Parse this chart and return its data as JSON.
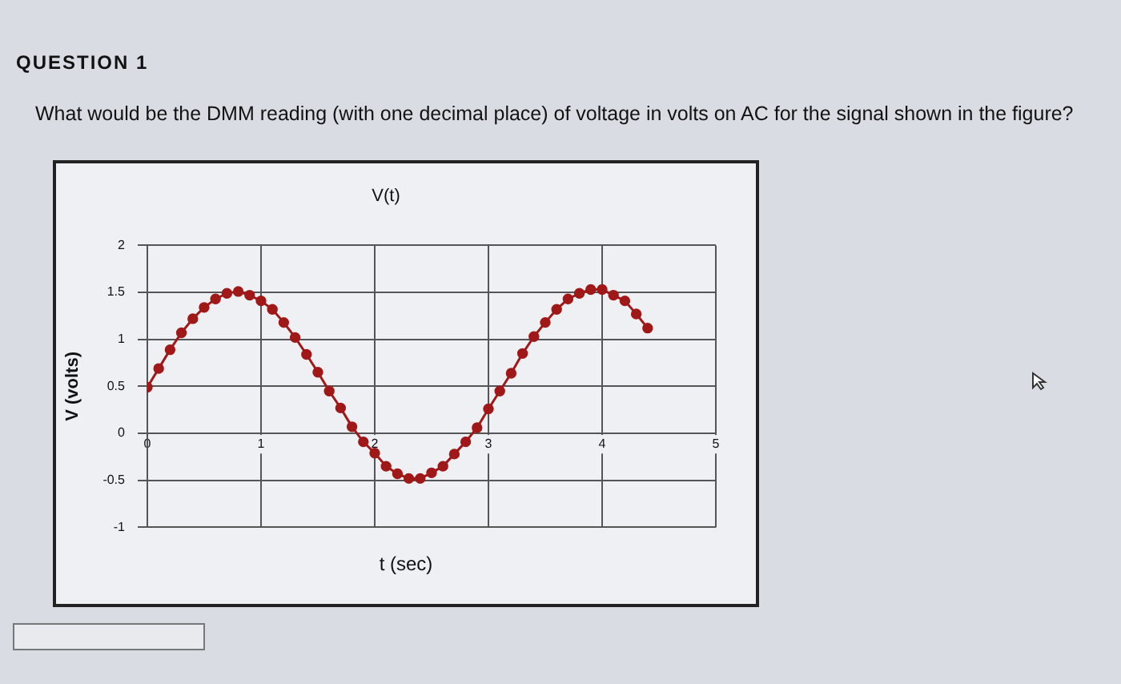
{
  "chart_data": {
    "type": "line",
    "title": "V(t)",
    "xlabel": "t (sec)",
    "ylabel": "V (volts)",
    "annotations": [
      "QUESTION 1",
      "What would be the DMM reading (with one decimal place) of voltage in volts on AC for the signal shown in the figure?"
    ],
    "x": [
      0,
      0.1,
      0.2,
      0.3,
      0.4,
      0.5,
      0.6,
      0.7,
      0.8,
      0.9,
      1,
      1.1,
      1.2,
      1.3,
      1.4,
      1.5,
      1.6,
      1.7,
      1.8,
      1.9,
      2,
      2.1,
      2.2,
      2.3,
      2.4,
      2.5,
      2.6,
      2.7,
      2.8,
      2.9,
      3,
      3.1,
      3.2,
      3.3,
      3.4,
      3.5,
      3.6,
      3.7,
      3.8,
      3.9,
      4,
      4.1,
      4.2,
      4.3,
      4.4
    ],
    "series": [
      {
        "color": "#a01818",
        "values": [
          0.49,
          0.69,
          0.89,
          1.07,
          1.22,
          1.34,
          1.43,
          1.49,
          1.51,
          1.47,
          1.41,
          1.32,
          1.18,
          1.02,
          0.84,
          0.65,
          0.45,
          0.27,
          0.07,
          -0.09,
          -0.21,
          -0.35,
          -0.43,
          -0.48,
          -0.48,
          -0.42,
          -0.35,
          -0.22,
          -0.09,
          0.06,
          0.26,
          0.45,
          0.64,
          0.85,
          1.03,
          1.18,
          1.32,
          1.43,
          1.49,
          1.53,
          1.53,
          1.47,
          1.41,
          1.27,
          1.12
        ]
      }
    ],
    "xlim": [
      0,
      5
    ],
    "xticks": [
      0,
      1,
      2,
      3,
      4,
      5
    ],
    "ylim": [
      -1,
      2
    ],
    "yticks": [
      -1,
      -0.5,
      0,
      0.5,
      1,
      1.5,
      2
    ],
    "grid": true,
    "legend": false,
    "marker": "circle",
    "line_style": "solid"
  }
}
